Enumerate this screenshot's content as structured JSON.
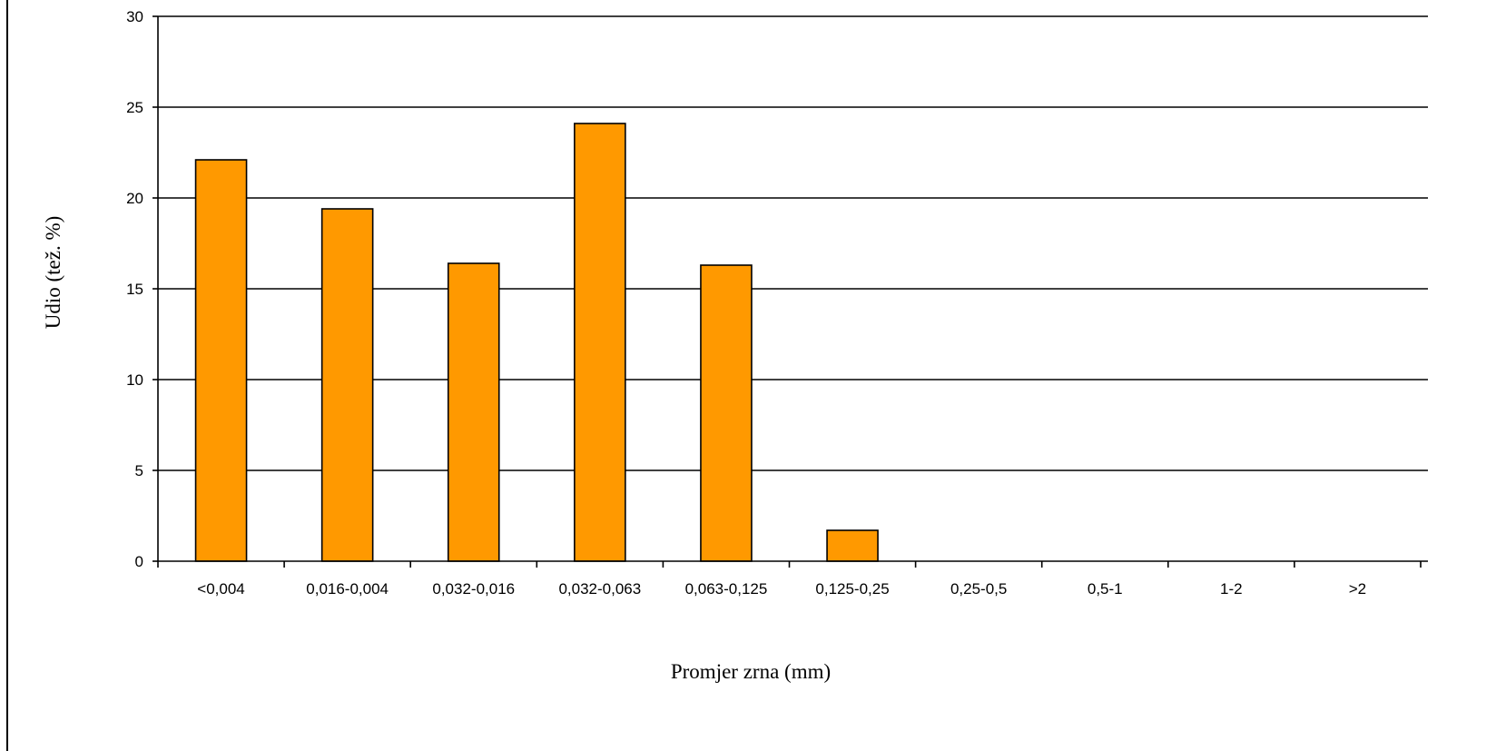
{
  "chart_data": {
    "type": "bar",
    "title": "",
    "xlabel": "Promjer zrna (mm)",
    "ylabel": "Udio (tež. %)",
    "categories": [
      "<0,004",
      "0,016-0,004",
      "0,032-0,016",
      "0,032-0,063",
      "0,063-0,125",
      "0,125-0,25",
      "0,25-0,5",
      "0,5-1",
      "1-2",
      ">2"
    ],
    "values": [
      22.1,
      19.4,
      16.4,
      24.1,
      16.3,
      1.7,
      0,
      0,
      0,
      0
    ],
    "ylim": [
      0,
      30
    ],
    "yticks": [
      "0",
      "5",
      "10",
      "15",
      "20",
      "25",
      "30"
    ],
    "grid": true,
    "legend": "none",
    "bar_color": "#ff9900",
    "bar_stroke": "#000000",
    "grid_color": "#000000"
  }
}
